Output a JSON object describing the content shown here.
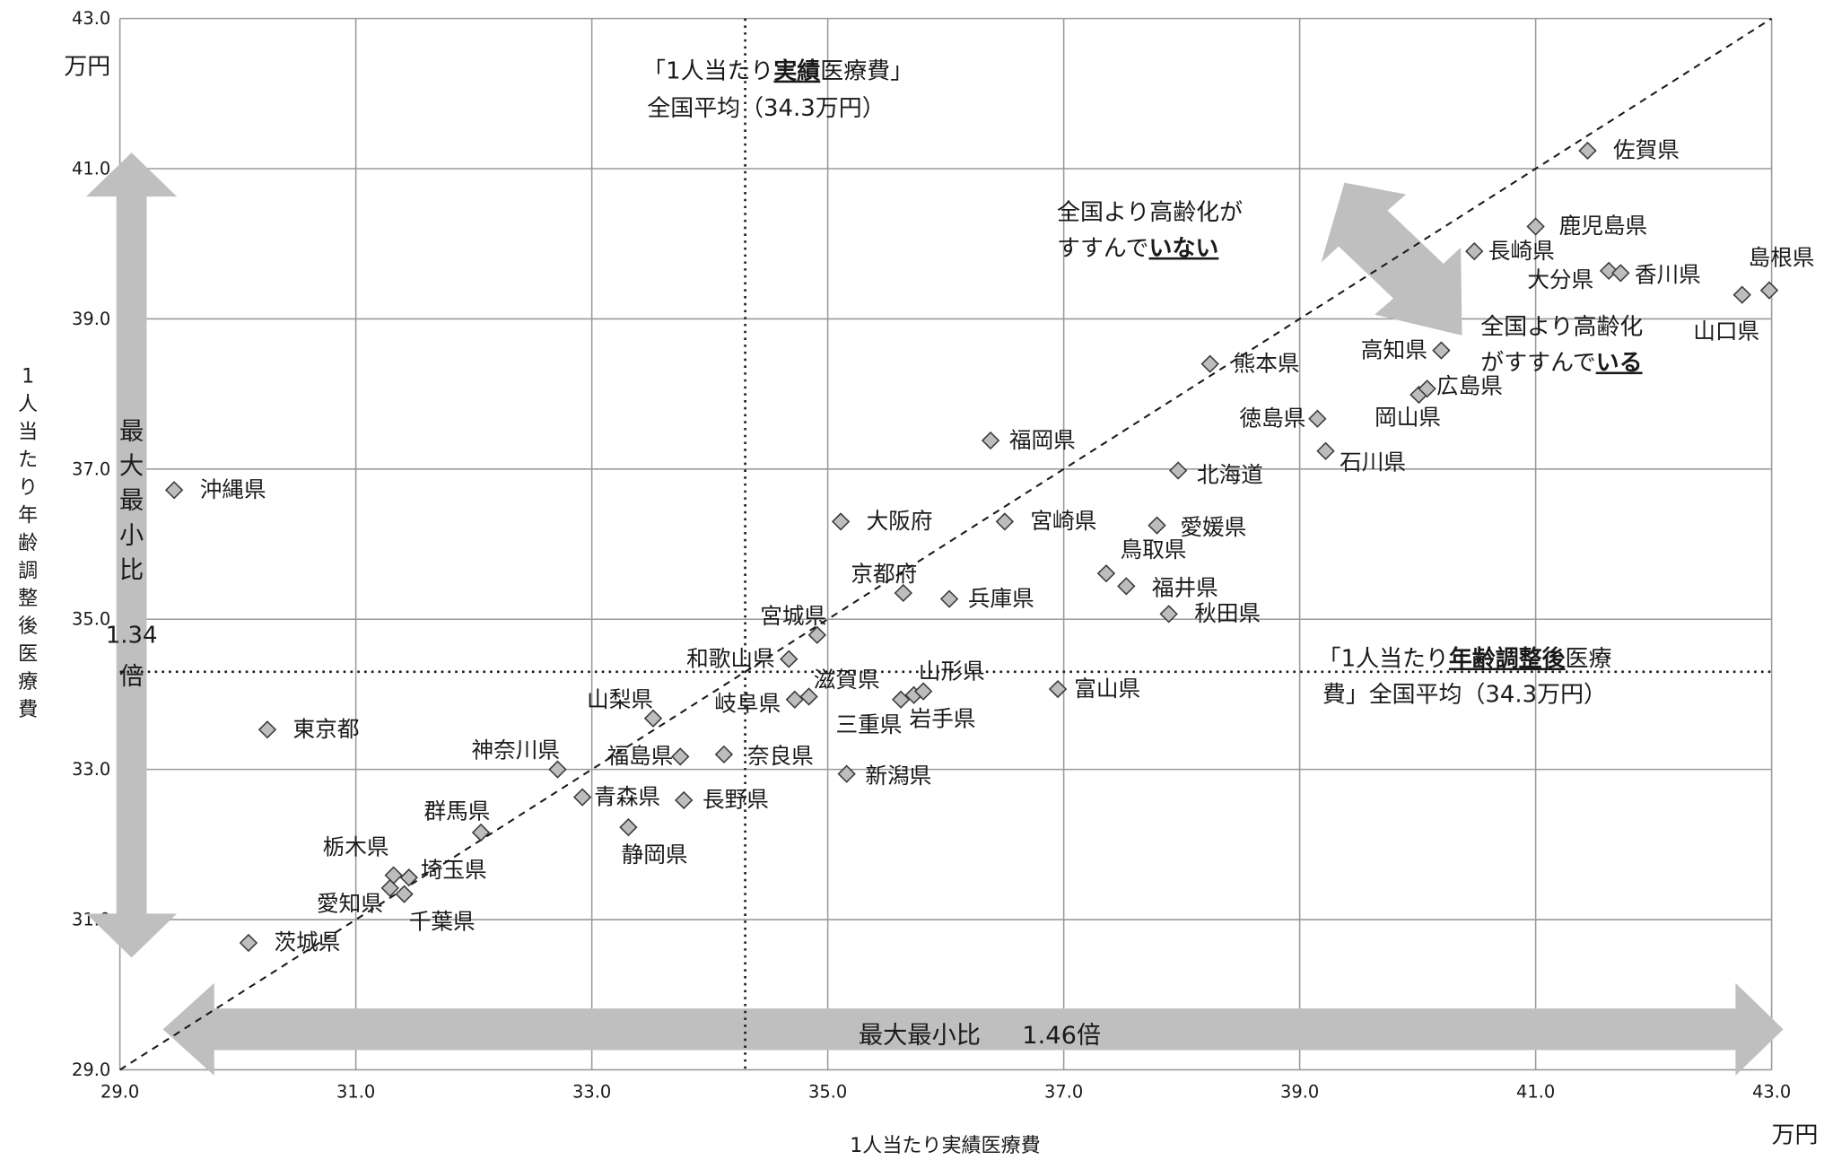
{
  "chart_data": {
    "type": "scatter",
    "xlabel": "1人当たり実績医療費",
    "ylabel": "1人当たり年齢調整後医療費",
    "x_unit": "万円",
    "y_unit": "万円",
    "xlim": [
      29.0,
      43.0
    ],
    "ylim": [
      29.0,
      43.0
    ],
    "x_ticks": [
      "29.0",
      "31.0",
      "33.0",
      "35.0",
      "37.0",
      "39.0",
      "41.0",
      "43.0"
    ],
    "y_ticks": [
      "29.0",
      "31.0",
      "33.0",
      "35.0",
      "37.0",
      "39.0",
      "41.0",
      "43.0"
    ],
    "grid": true,
    "reference_lines": {
      "x_mean": 34.3,
      "y_mean": 34.3,
      "x_mean_label_line1": "「1人当たり実績医療費」",
      "x_mean_label_emph": "実績",
      "x_mean_label_line2": "全国平均（34.3万円）",
      "y_mean_label_line1": "「1人当たり年齢調整後医療",
      "y_mean_label_emph": "年齢調整後",
      "y_mean_label_line2": "費」全国平均（34.3万円）"
    },
    "diagonal": true,
    "annotations": {
      "upper": [
        "全国より高齢化が",
        "すすんで",
        "いない"
      ],
      "lower": [
        "全国より高齢化",
        "がすすんで",
        "いる"
      ]
    },
    "range_arrows": {
      "y_text": [
        "最",
        "大",
        "最",
        "小",
        "比"
      ],
      "y_ratio": "1.34",
      "y_ratio_unit": "倍",
      "x_text": "最大最小比",
      "x_ratio": "1.46倍"
    },
    "points": [
      {
        "name": "沖縄県",
        "x": 29.46,
        "y": 36.72
      },
      {
        "name": "東京都",
        "x": 30.25,
        "y": 33.53
      },
      {
        "name": "茨城県",
        "x": 30.09,
        "y": 30.69
      },
      {
        "name": "栃木県",
        "x": 31.32,
        "y": 31.59
      },
      {
        "name": "埼玉県",
        "x": 31.45,
        "y": 31.56
      },
      {
        "name": "愛知県",
        "x": 31.29,
        "y": 31.42
      },
      {
        "name": "千葉県",
        "x": 31.41,
        "y": 31.34
      },
      {
        "name": "群馬県",
        "x": 32.06,
        "y": 32.16
      },
      {
        "name": "神奈川県",
        "x": 32.71,
        "y": 33.0
      },
      {
        "name": "青森県",
        "x": 32.92,
        "y": 32.63
      },
      {
        "name": "静岡県",
        "x": 33.31,
        "y": 32.23
      },
      {
        "name": "山梨県",
        "x": 33.52,
        "y": 33.68
      },
      {
        "name": "福島県",
        "x": 33.75,
        "y": 33.17
      },
      {
        "name": "長野県",
        "x": 33.78,
        "y": 32.59
      },
      {
        "name": "奈良県",
        "x": 34.12,
        "y": 33.2
      },
      {
        "name": "和歌山県",
        "x": 34.67,
        "y": 34.47
      },
      {
        "name": "宮城県",
        "x": 34.91,
        "y": 34.79
      },
      {
        "name": "岐阜県",
        "x": 34.72,
        "y": 33.93
      },
      {
        "name": "滋賀県",
        "x": 34.84,
        "y": 33.97
      },
      {
        "name": "新潟県",
        "x": 35.16,
        "y": 32.94
      },
      {
        "name": "大阪府",
        "x": 35.11,
        "y": 36.3
      },
      {
        "name": "京都府",
        "x": 35.64,
        "y": 35.35
      },
      {
        "name": "三重県",
        "x": 35.62,
        "y": 33.93
      },
      {
        "name": "山形県",
        "x": 35.73,
        "y": 33.99
      },
      {
        "name": "岩手県",
        "x": 35.81,
        "y": 34.04
      },
      {
        "name": "兵庫県",
        "x": 36.03,
        "y": 35.27
      },
      {
        "name": "福岡県",
        "x": 36.38,
        "y": 37.38
      },
      {
        "name": "宮崎県",
        "x": 36.5,
        "y": 36.3
      },
      {
        "name": "富山県",
        "x": 36.95,
        "y": 34.07
      },
      {
        "name": "鳥取県",
        "x": 37.36,
        "y": 35.61
      },
      {
        "name": "福井県",
        "x": 37.53,
        "y": 35.44
      },
      {
        "name": "愛媛県",
        "x": 37.79,
        "y": 36.25
      },
      {
        "name": "秋田県",
        "x": 37.89,
        "y": 35.07
      },
      {
        "name": "北海道",
        "x": 37.97,
        "y": 36.98
      },
      {
        "name": "熊本県",
        "x": 38.24,
        "y": 38.4
      },
      {
        "name": "徳島県",
        "x": 39.15,
        "y": 37.67
      },
      {
        "name": "石川県",
        "x": 39.22,
        "y": 37.24
      },
      {
        "name": "岡山県",
        "x": 40.01,
        "y": 37.99
      },
      {
        "name": "広島県",
        "x": 40.08,
        "y": 38.07
      },
      {
        "name": "高知県",
        "x": 40.2,
        "y": 38.58
      },
      {
        "name": "長崎県",
        "x": 40.48,
        "y": 39.9
      },
      {
        "name": "鹿児島県",
        "x": 41.0,
        "y": 40.23
      },
      {
        "name": "大分県",
        "x": 41.62,
        "y": 39.64
      },
      {
        "name": "香川県",
        "x": 41.72,
        "y": 39.61
      },
      {
        "name": "佐賀県",
        "x": 41.44,
        "y": 41.24
      },
      {
        "name": "山口県",
        "x": 42.75,
        "y": 39.32
      },
      {
        "name": "島根県",
        "x": 42.98,
        "y": 39.38
      }
    ]
  }
}
